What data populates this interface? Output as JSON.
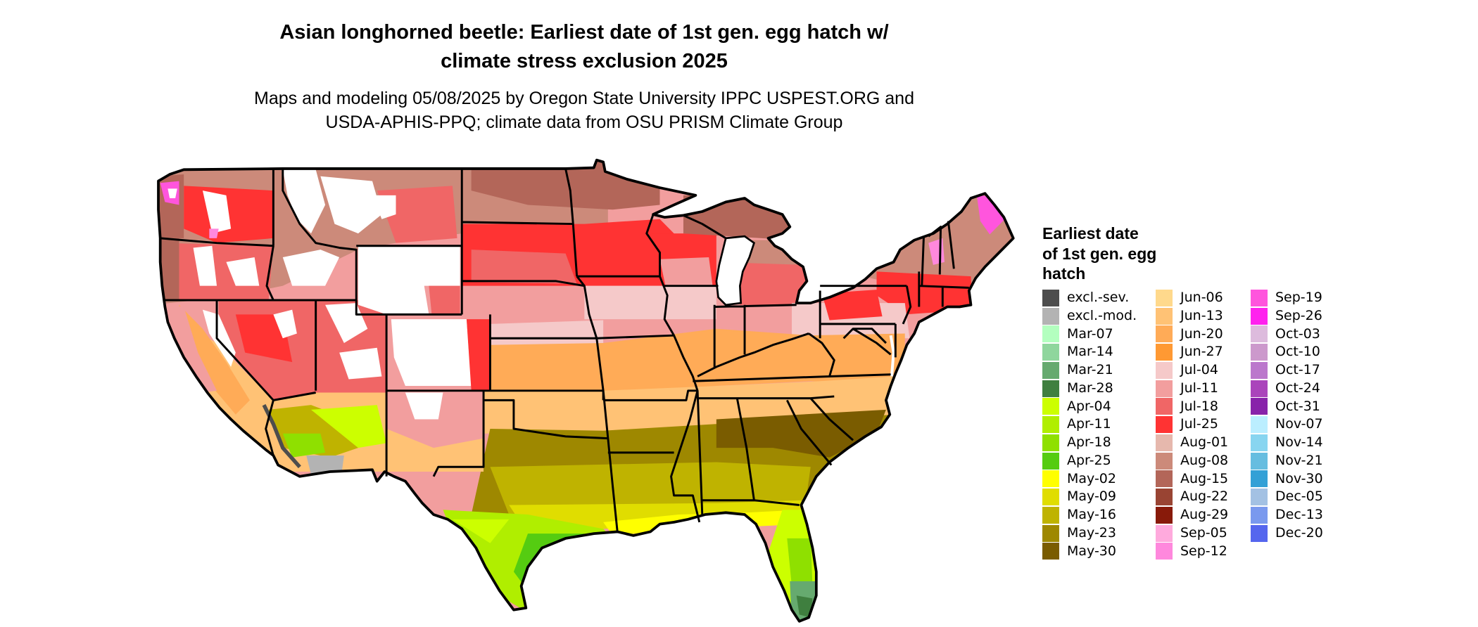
{
  "title": {
    "lines": [
      "Asian longhorned beetle: Earliest date of 1st gen. egg hatch w/",
      "climate stress exclusion 2025"
    ]
  },
  "subtitle": {
    "lines": [
      "Maps and modeling 05/08/2025 by Oregon State University IPPC USPEST.ORG and",
      "USDA-APHIS-PPQ; climate data from OSU PRISM Climate Group"
    ]
  },
  "legend": {
    "title_lines": [
      "Earliest date",
      "of 1st gen. egg",
      "hatch"
    ],
    "columns": [
      [
        {
          "label": "excl.-sev.",
          "color": "#4d4d4d"
        },
        {
          "label": "excl.-mod.",
          "color": "#b3b3b3"
        },
        {
          "label": "Mar-07",
          "color": "#b3ffbf"
        },
        {
          "label": "Mar-14",
          "color": "#8fd69d"
        },
        {
          "label": "Mar-21",
          "color": "#66aa6f"
        },
        {
          "label": "Mar-28",
          "color": "#3f7f3f"
        },
        {
          "label": "Apr-04",
          "color": "#ccff00"
        },
        {
          "label": "Apr-11",
          "color": "#b0ee00"
        },
        {
          "label": "Apr-18",
          "color": "#8fe000"
        },
        {
          "label": "Apr-25",
          "color": "#55cc11"
        },
        {
          "label": "May-02",
          "color": "#ffff00"
        },
        {
          "label": "May-09",
          "color": "#e0dd00"
        },
        {
          "label": "May-16",
          "color": "#bfb300"
        },
        {
          "label": "May-23",
          "color": "#9e8800"
        },
        {
          "label": "May-30",
          "color": "#7a5c00"
        }
      ],
      [
        {
          "label": "Jun-06",
          "color": "#ffd98c"
        },
        {
          "label": "Jun-13",
          "color": "#ffc275"
        },
        {
          "label": "Jun-20",
          "color": "#ffab57"
        },
        {
          "label": "Jun-27",
          "color": "#ff9933"
        },
        {
          "label": "Jul-04",
          "color": "#f5c9c9"
        },
        {
          "label": "Jul-11",
          "color": "#f29e9e"
        },
        {
          "label": "Jul-18",
          "color": "#f06666"
        },
        {
          "label": "Jul-25",
          "color": "#ff3333"
        },
        {
          "label": "Aug-01",
          "color": "#e6b8ad"
        },
        {
          "label": "Aug-08",
          "color": "#cc8a7a"
        },
        {
          "label": "Aug-15",
          "color": "#b36659"
        },
        {
          "label": "Aug-22",
          "color": "#994433"
        },
        {
          "label": "Aug-29",
          "color": "#881a0a"
        },
        {
          "label": "Sep-05",
          "color": "#ffaadd"
        },
        {
          "label": "Sep-12",
          "color": "#ff88dd"
        }
      ],
      [
        {
          "label": "Sep-19",
          "color": "#ff55dd"
        },
        {
          "label": "Sep-26",
          "color": "#ff22ee"
        },
        {
          "label": "Oct-03",
          "color": "#ddbbdd"
        },
        {
          "label": "Oct-10",
          "color": "#cc99cc"
        },
        {
          "label": "Oct-17",
          "color": "#bb77cc"
        },
        {
          "label": "Oct-24",
          "color": "#aa44bb"
        },
        {
          "label": "Oct-31",
          "color": "#8822aa"
        },
        {
          "label": "Nov-07",
          "color": "#bbeeff"
        },
        {
          "label": "Nov-14",
          "color": "#88d5f0"
        },
        {
          "label": "Nov-21",
          "color": "#66bde0"
        },
        {
          "label": "Nov-30",
          "color": "#33a0d6"
        },
        {
          "label": "Dec-05",
          "color": "#a3c1e3"
        },
        {
          "label": "Dec-13",
          "color": "#7a99ee"
        },
        {
          "label": "Dec-20",
          "color": "#5566ee"
        }
      ]
    ]
  }
}
